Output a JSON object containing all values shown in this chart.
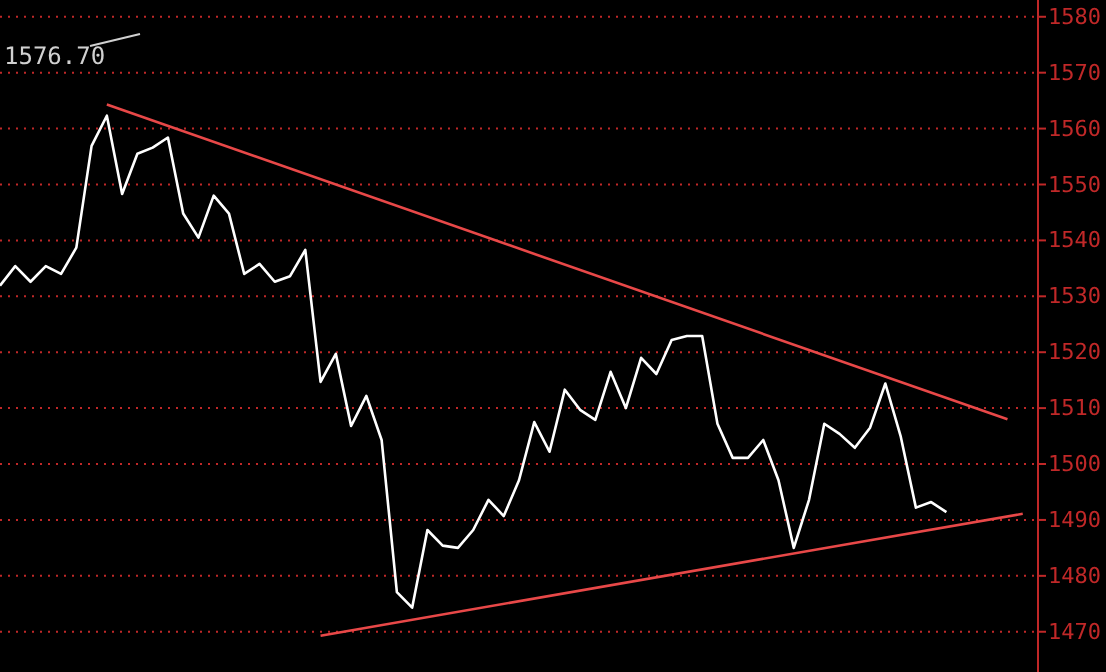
{
  "chart_data": {
    "type": "line",
    "annotations": [
      "1576.70"
    ],
    "categories": [
      null,
      null,
      null,
      null,
      null,
      null,
      null,
      null,
      null,
      null,
      null,
      null,
      null,
      null,
      null,
      null,
      null,
      null,
      null,
      null,
      null,
      null,
      null,
      null,
      null,
      null,
      null,
      null,
      null,
      null,
      null,
      null,
      null,
      null,
      null,
      null,
      null,
      null,
      null,
      null,
      null,
      null,
      null,
      null,
      null,
      null,
      null,
      null,
      null,
      null,
      null,
      null,
      null,
      null,
      null,
      null,
      null,
      null,
      null,
      null,
      null,
      null,
      null,
      null,
      null,
      null,
      null,
      null
    ],
    "series": [
      {
        "color": "#ffffff",
        "values": [
          1531.9,
          1535.4,
          1532.6,
          1535.4,
          1534.0,
          1538.7,
          1556.9,
          1562.3,
          1548.3,
          1555.5,
          1556.6,
          1558.4,
          1544.8,
          1540.5,
          1548.0,
          1544.8,
          1534.0,
          1535.8,
          1532.6,
          1533.6,
          1538.3,
          1514.7,
          1519.7,
          1506.8,
          1512.2,
          1504.3,
          1477.1,
          1474.3,
          1488.2,
          1485.4,
          1485.0,
          1488.2,
          1493.6,
          1490.7,
          1497.1,
          1507.5,
          1502.2,
          1513.3,
          1509.7,
          1507.9,
          1516.5,
          1510.0,
          1519.0,
          1516.1,
          1522.2,
          1522.9,
          1522.9,
          1507.2,
          1501.1,
          1501.1,
          1504.3,
          1497.1,
          1485.0,
          1493.6,
          1507.2,
          1505.4,
          1502.9,
          1506.5,
          1514.4,
          1505.0,
          1492.2,
          1493.2,
          1491.4,
          null,
          null,
          null,
          null,
          null
        ]
      },
      {
        "color": "#e84848",
        "values": [
          null,
          null,
          null,
          null,
          null,
          null,
          null,
          1564.3,
          null,
          null,
          null,
          null,
          null,
          null,
          null,
          null,
          null,
          null,
          null,
          null,
          null,
          null,
          null,
          null,
          null,
          null,
          null,
          null,
          null,
          null,
          null,
          null,
          null,
          null,
          null,
          null,
          null,
          null,
          null,
          null,
          null,
          null,
          null,
          null,
          null,
          null,
          null,
          null,
          null,
          null,
          null,
          null,
          null,
          null,
          null,
          null,
          null,
          null,
          null,
          null,
          null,
          null,
          null,
          null,
          null,
          null,
          1508.0,
          null
        ]
      },
      {
        "color": "#e84848",
        "values": [
          null,
          null,
          null,
          null,
          null,
          null,
          null,
          null,
          null,
          null,
          null,
          null,
          null,
          null,
          null,
          null,
          null,
          null,
          null,
          null,
          null,
          1469.3,
          null,
          null,
          null,
          null,
          null,
          null,
          null,
          null,
          null,
          null,
          null,
          null,
          null,
          null,
          null,
          null,
          null,
          null,
          null,
          null,
          null,
          null,
          null,
          null,
          null,
          null,
          null,
          null,
          null,
          null,
          null,
          null,
          null,
          null,
          null,
          null,
          null,
          null,
          null,
          null,
          null,
          null,
          null,
          null,
          null,
          1491.1
        ]
      }
    ],
    "ylim": [
      1462.8,
      1583
    ],
    "yticks": [
      1470,
      1480,
      1490,
      1500,
      1510,
      1520,
      1530,
      1540,
      1550,
      1560,
      1570,
      1580
    ],
    "grid": "y",
    "tick_labels": "y",
    "marker": "none",
    "line_style": "solid"
  }
}
